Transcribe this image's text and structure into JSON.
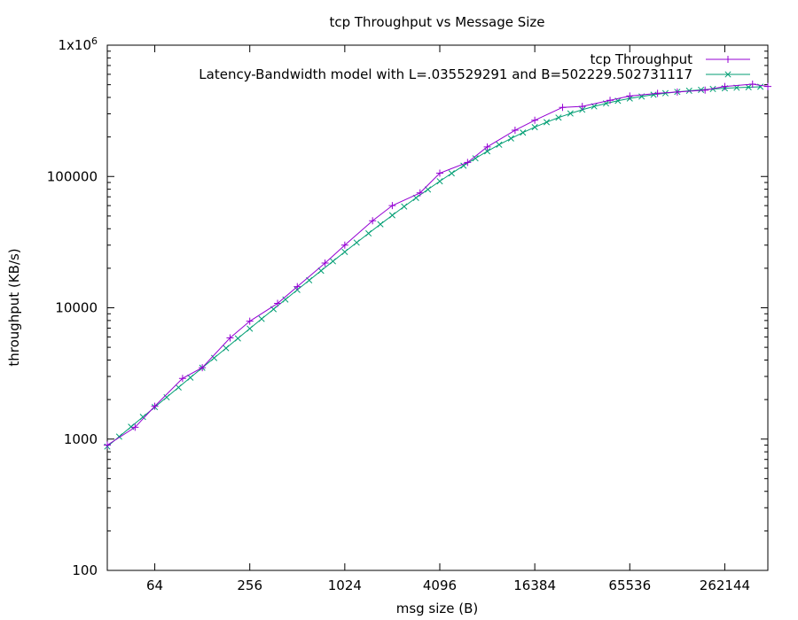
{
  "chart_data": {
    "type": "line",
    "title": "tcp Throughput vs Message Size",
    "xlabel": "msg size (B)",
    "ylabel": "throughput (KB/s)",
    "x_scale": "log2",
    "y_scale": "log10",
    "xlim": [
      32,
      491520
    ],
    "ylim": [
      100,
      1000000
    ],
    "x_ticks": [
      64,
      256,
      1024,
      4096,
      16384,
      65536,
      262144
    ],
    "x_tick_labels": [
      "64",
      "256",
      "1024",
      "4096",
      "16384",
      "65536",
      "262144"
    ],
    "y_ticks": [
      100,
      1000,
      10000,
      100000,
      1000000
    ],
    "y_tick_labels": [
      "100",
      "1000",
      "10000",
      "100000",
      "1x10^6"
    ],
    "legend_position": "top-right",
    "series": [
      {
        "name": "tcp Throughput",
        "color": "#9400d3",
        "marker": "plus",
        "x": [
          32,
          48,
          64,
          96,
          128,
          192,
          256,
          384,
          512,
          768,
          1024,
          1536,
          2048,
          3072,
          4096,
          6144,
          8192,
          12288,
          16384,
          24576,
          32768,
          49152,
          65536,
          98304,
          131072,
          196608,
          262144,
          393216,
          491520
        ],
        "y": [
          900,
          1230,
          1780,
          2900,
          3500,
          5900,
          7900,
          10800,
          14500,
          21900,
          30000,
          46000,
          60000,
          75000,
          106000,
          128000,
          168000,
          225000,
          268000,
          336000,
          342000,
          380000,
          410000,
          430000,
          440000,
          455000,
          485000,
          505000,
          485000
        ]
      },
      {
        "name": "Latency-Bandwidth model with L=.035529291 and B=502229.502731117",
        "color": "#009e73",
        "marker": "cross",
        "model": {
          "L": 0.035529291,
          "B": 502229.502731117
        }
      }
    ]
  }
}
